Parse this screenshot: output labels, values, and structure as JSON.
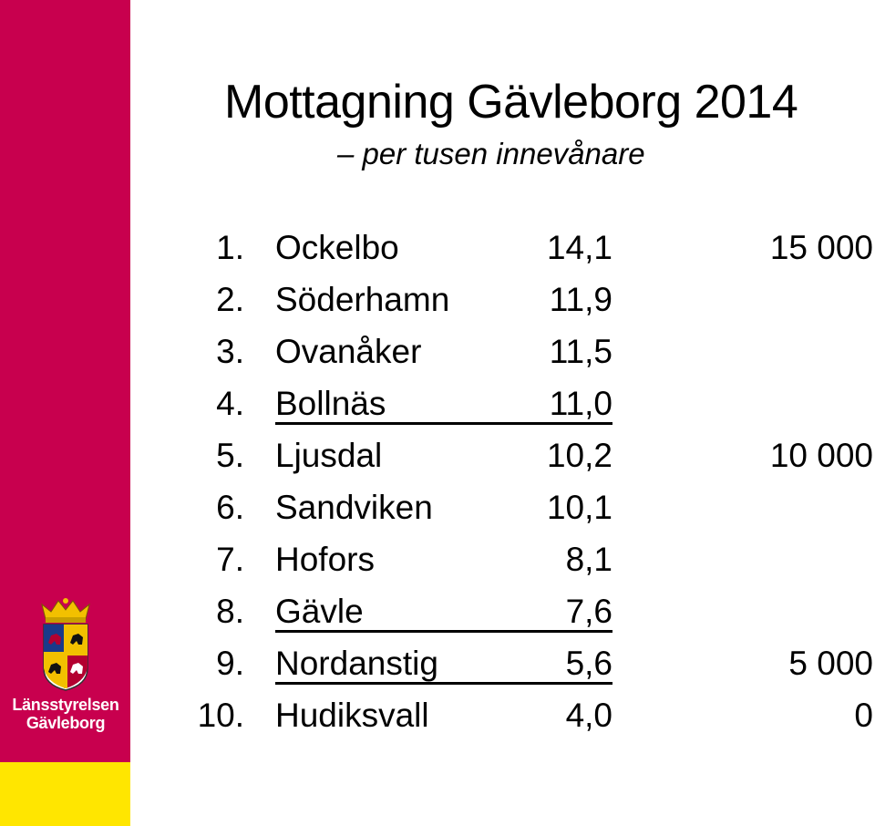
{
  "title": "Mottagning Gävleborg 2014",
  "subtitle": "– per tusen innevånare",
  "logo": {
    "line1": "Länsstyrelsen",
    "line2": "Gävleborg",
    "icon": "coat-of-arms-icon"
  },
  "colors": {
    "sidebar": "#c8004e",
    "sidebar_foot": "#ffe600"
  },
  "rows": [
    {
      "rank": "1.",
      "name": "Ockelbo",
      "value": "14,1",
      "scale": "15 000",
      "underline": false
    },
    {
      "rank": "2.",
      "name": "Söderhamn",
      "value": "11,9",
      "scale": "",
      "underline": false
    },
    {
      "rank": "3.",
      "name": "Ovanåker",
      "value": "11,5",
      "scale": "",
      "underline": false
    },
    {
      "rank": "4.",
      "name": "Bollnäs",
      "value": "11,0",
      "scale": "",
      "underline": true
    },
    {
      "rank": "5.",
      "name": "Ljusdal",
      "value": "10,2",
      "scale": "10 000",
      "underline": false
    },
    {
      "rank": "6.",
      "name": "Sandviken",
      "value": "10,1",
      "scale": "",
      "underline": false
    },
    {
      "rank": "7.",
      "name": "Hofors",
      "value": "8,1",
      "scale": "",
      "underline": false
    },
    {
      "rank": "8.",
      "name": "Gävle",
      "value": "7,6",
      "scale": "",
      "underline": true
    },
    {
      "rank": "9.",
      "name": "Nordanstig",
      "value": "5,6",
      "scale": "5 000",
      "underline": true
    },
    {
      "rank": "10.",
      "name": "Hudiksvall",
      "value": "4,0",
      "scale": "0",
      "underline": false
    }
  ]
}
